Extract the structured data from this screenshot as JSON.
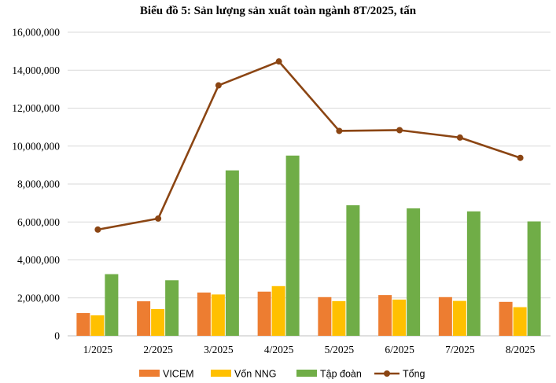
{
  "chart_data": {
    "type": "bar",
    "title": "Biểu đồ 5: Sản lượng sản xuất toàn ngành 8T/2025, tấn",
    "categories": [
      "1/2025",
      "2/2025",
      "3/2025",
      "4/2025",
      "5/2025",
      "6/2025",
      "7/2025",
      "8/2025"
    ],
    "ylim": [
      0,
      16000000
    ],
    "yticks": [
      "0",
      "2,000,000",
      "4,000,000",
      "6,000,000",
      "8,000,000",
      "10,000,000",
      "12,000,000",
      "14,000,000",
      "16,000,000"
    ],
    "grid": true,
    "legend_position": "bottom",
    "series": [
      {
        "name": "VICEM",
        "type": "bar",
        "color": "#ED7D31",
        "values": [
          1200000,
          1820000,
          2280000,
          2330000,
          2040000,
          2150000,
          2040000,
          1790000
        ]
      },
      {
        "name": "Vốn NNG",
        "type": "bar",
        "color": "#FFC000",
        "values": [
          1080000,
          1410000,
          2180000,
          2620000,
          1830000,
          1910000,
          1840000,
          1510000
        ]
      },
      {
        "name": "Tập đoàn",
        "type": "bar",
        "color": "#70AD47",
        "values": [
          3250000,
          2930000,
          8720000,
          9500000,
          6880000,
          6720000,
          6560000,
          6030000
        ]
      },
      {
        "name": "Tổng",
        "type": "line",
        "color": "#8B4513",
        "values": [
          5600000,
          6180000,
          13200000,
          14460000,
          10800000,
          10840000,
          10450000,
          9380000
        ]
      }
    ]
  }
}
